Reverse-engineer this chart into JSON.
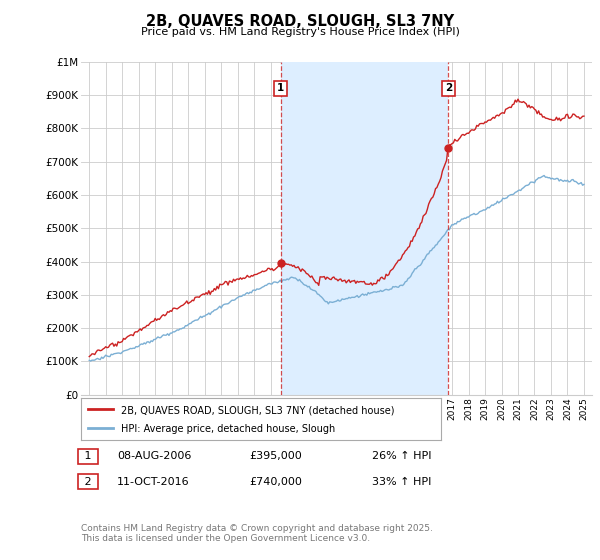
{
  "title": "2B, QUAVES ROAD, SLOUGH, SL3 7NY",
  "subtitle": "Price paid vs. HM Land Registry's House Price Index (HPI)",
  "ylabel_ticks": [
    "£0",
    "£100K",
    "£200K",
    "£300K",
    "£400K",
    "£500K",
    "£600K",
    "£700K",
    "£800K",
    "£900K",
    "£1M"
  ],
  "ylim": [
    0,
    1000000
  ],
  "yticks": [
    0,
    100000,
    200000,
    300000,
    400000,
    500000,
    600000,
    700000,
    800000,
    900000,
    1000000
  ],
  "xlim_start": 1994.5,
  "xlim_end": 2025.5,
  "marker1_x": 2006.6,
  "marker1_y": 395000,
  "marker2_x": 2016.78,
  "marker2_y": 740000,
  "red_color": "#cc2222",
  "blue_color": "#7bafd4",
  "shade_color": "#ddeeff",
  "grid_color": "#cccccc",
  "legend_label_red": "2B, QUAVES ROAD, SLOUGH, SL3 7NY (detached house)",
  "legend_label_blue": "HPI: Average price, detached house, Slough",
  "footnote": "Contains HM Land Registry data © Crown copyright and database right 2025.\nThis data is licensed under the Open Government Licence v3.0.",
  "background_color": "#ffffff",
  "table_row1": [
    "1",
    "08-AUG-2006",
    "£395,000",
    "26% ↑ HPI"
  ],
  "table_row2": [
    "2",
    "11-OCT-2016",
    "£740,000",
    "33% ↑ HPI"
  ]
}
